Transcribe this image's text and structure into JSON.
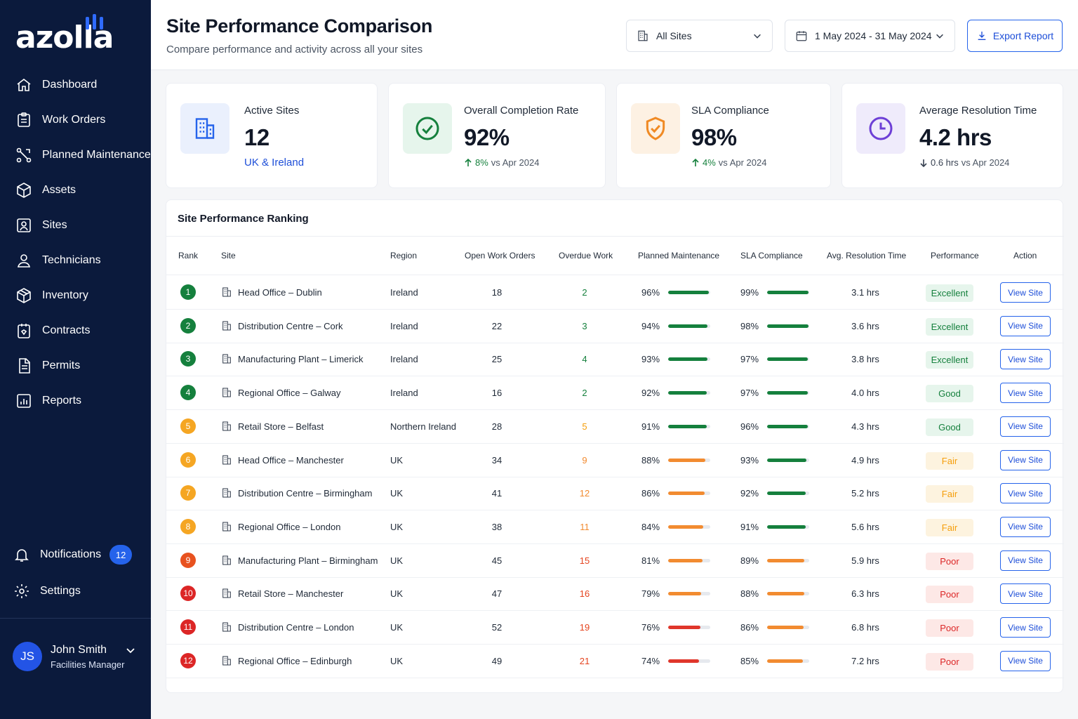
{
  "brand": {
    "name": "azolla"
  },
  "sidebar": {
    "items": [
      {
        "label": "Dashboard",
        "icon": "home-icon"
      },
      {
        "label": "Work Orders",
        "icon": "clipboard-icon"
      },
      {
        "label": "Planned Maintenance",
        "icon": "workflow-icon"
      },
      {
        "label": "Assets",
        "icon": "cube-icon"
      },
      {
        "label": "Sites",
        "icon": "site-icon"
      },
      {
        "label": "Technicians",
        "icon": "user-icon"
      },
      {
        "label": "Inventory",
        "icon": "box-icon"
      },
      {
        "label": "Contracts",
        "icon": "contract-icon"
      },
      {
        "label": "Permits",
        "icon": "document-icon"
      },
      {
        "label": "Reports",
        "icon": "chart-icon"
      }
    ],
    "notifications": {
      "label": "Notifications",
      "count": "12"
    },
    "settings": {
      "label": "Settings"
    },
    "user": {
      "initials": "JS",
      "name": "John Smith",
      "role": "Facilities Manager"
    }
  },
  "header": {
    "title": "Site Performance Comparison",
    "subtitle": "Compare performance and activity across all your sites",
    "site_filter": "All Sites",
    "date_range": "1 May 2024 - 31 May 2024",
    "export_label": "Export Report"
  },
  "kpis": {
    "active_sites": {
      "label": "Active Sites",
      "value": "12",
      "link": "UK & Ireland"
    },
    "completion": {
      "label": "Overall Completion Rate",
      "value": "92%",
      "delta": "8%",
      "compare": "vs Apr 2024"
    },
    "sla": {
      "label": "SLA Compliance",
      "value": "98%",
      "delta": "4%",
      "compare": "vs Apr 2024"
    },
    "resolution": {
      "label": "Average Resolution Time",
      "value": "4.2 hrs",
      "delta": "0.6 hrs",
      "compare": "vs Apr 2024"
    }
  },
  "colors": {
    "excellent": "#15803d",
    "good": "#15803d",
    "fair": "#f59e0b",
    "poor": "#ef4444",
    "bar_green": "#15803d",
    "bar_orange": "#f28b30",
    "bar_red": "#e0362b"
  },
  "table": {
    "title": "Site Performance Ranking",
    "columns": [
      "Rank",
      "Site",
      "Region",
      "Open Work Orders",
      "Overdue Work",
      "Planned Maintenance",
      "SLA Compliance",
      "Avg. Resolution Time",
      "Performance",
      "Action"
    ],
    "rows": [
      {
        "rank": "1",
        "site": "Head Office – Dublin",
        "region": "Ireland",
        "open": "18",
        "overdue": "2",
        "pm": "96%",
        "pm_value": 96,
        "sla": "99%",
        "sla_value": 99,
        "res": "3.1 hrs",
        "perf": "Excellent",
        "action": "View Site"
      },
      {
        "rank": "2",
        "site": "Distribution Centre – Cork",
        "region": "Ireland",
        "open": "22",
        "overdue": "3",
        "pm": "94%",
        "pm_value": 94,
        "sla": "98%",
        "sla_value": 98,
        "res": "3.6 hrs",
        "perf": "Excellent",
        "action": "View Site"
      },
      {
        "rank": "3",
        "site": "Manufacturing Plant – Limerick",
        "region": "Ireland",
        "open": "25",
        "overdue": "4",
        "pm": "93%",
        "pm_value": 93,
        "sla": "97%",
        "sla_value": 97,
        "res": "3.8 hrs",
        "perf": "Excellent",
        "action": "View Site"
      },
      {
        "rank": "4",
        "site": "Regional Office – Galway",
        "region": "Ireland",
        "open": "16",
        "overdue": "2",
        "pm": "92%",
        "pm_value": 92,
        "sla": "97%",
        "sla_value": 97,
        "res": "4.0 hrs",
        "perf": "Good",
        "action": "View Site"
      },
      {
        "rank": "5",
        "site": "Retail Store – Belfast",
        "region": "Northern Ireland",
        "open": "28",
        "overdue": "5",
        "pm": "91%",
        "pm_value": 91,
        "sla": "96%",
        "sla_value": 96,
        "res": "4.3 hrs",
        "perf": "Good",
        "action": "View Site"
      },
      {
        "rank": "6",
        "site": "Head Office – Manchester",
        "region": "UK",
        "open": "34",
        "overdue": "9",
        "pm": "88%",
        "pm_value": 88,
        "sla": "93%",
        "sla_value": 93,
        "res": "4.9 hrs",
        "perf": "Fair",
        "action": "View Site"
      },
      {
        "rank": "7",
        "site": "Distribution Centre – Birmingham",
        "region": "UK",
        "open": "41",
        "overdue": "12",
        "pm": "86%",
        "pm_value": 86,
        "sla": "92%",
        "sla_value": 92,
        "res": "5.2 hrs",
        "perf": "Fair",
        "action": "View Site"
      },
      {
        "rank": "8",
        "site": "Regional Office – London",
        "region": "UK",
        "open": "38",
        "overdue": "11",
        "pm": "84%",
        "pm_value": 84,
        "sla": "91%",
        "sla_value": 91,
        "res": "5.6 hrs",
        "perf": "Fair",
        "action": "View Site"
      },
      {
        "rank": "9",
        "site": "Manufacturing Plant – Birmingham",
        "region": "UK",
        "open": "45",
        "overdue": "15",
        "pm": "81%",
        "pm_value": 81,
        "sla": "89%",
        "sla_value": 89,
        "res": "5.9 hrs",
        "perf": "Poor",
        "action": "View Site"
      },
      {
        "rank": "10",
        "site": "Retail Store – Manchester",
        "region": "UK",
        "open": "47",
        "overdue": "16",
        "pm": "79%",
        "pm_value": 79,
        "sla": "88%",
        "sla_value": 88,
        "res": "6.3 hrs",
        "perf": "Poor",
        "action": "View Site"
      },
      {
        "rank": "11",
        "site": "Distribution Centre – London",
        "region": "UK",
        "open": "52",
        "overdue": "19",
        "pm": "76%",
        "pm_value": 76,
        "sla": "86%",
        "sla_value": 86,
        "res": "6.8 hrs",
        "perf": "Poor",
        "action": "View Site"
      },
      {
        "rank": "12",
        "site": "Regional Office – Edinburgh",
        "region": "UK",
        "open": "49",
        "overdue": "21",
        "pm": "74%",
        "pm_value": 74,
        "sla": "85%",
        "sla_value": 85,
        "res": "7.2 hrs",
        "perf": "Poor",
        "action": "View Site"
      }
    ]
  }
}
